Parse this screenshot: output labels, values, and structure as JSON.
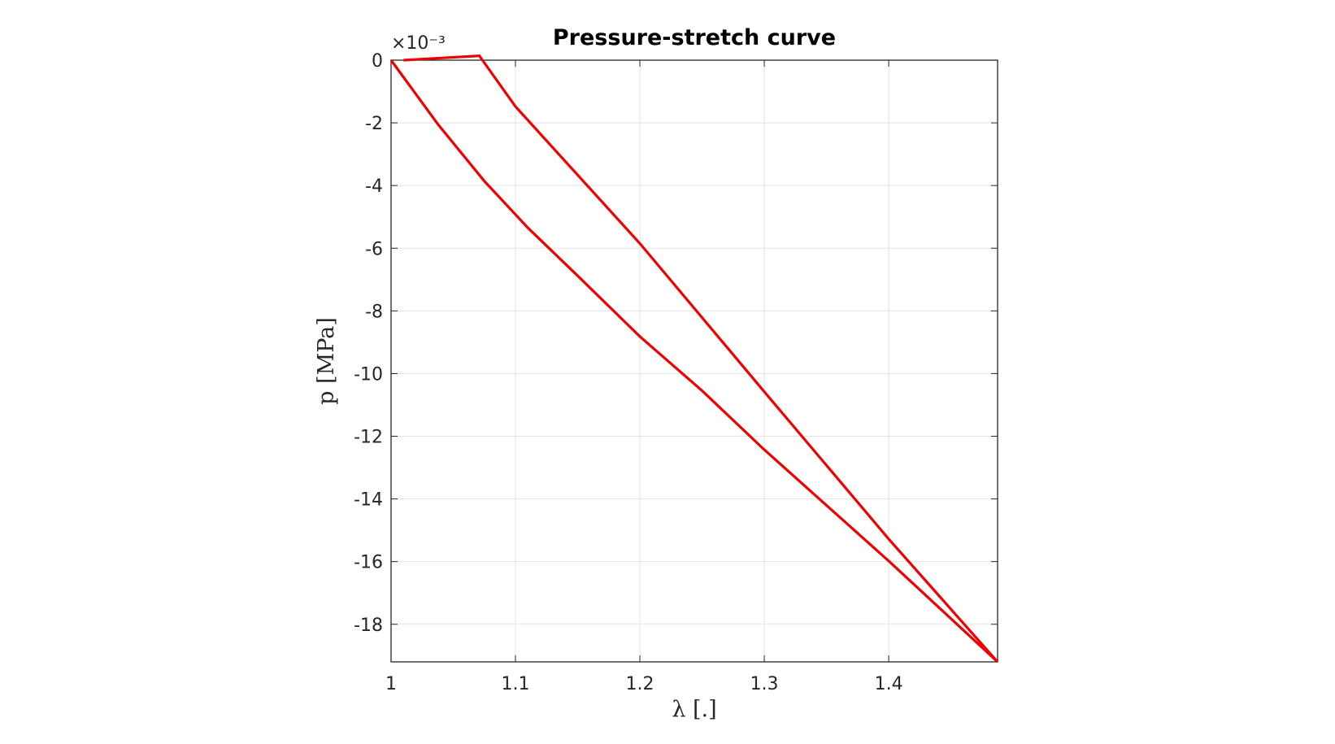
{
  "chart_data": {
    "type": "line",
    "title": "Pressure-stretch curve",
    "xlabel": "λ [.]",
    "ylabel": "p [MPa]",
    "y_exponent_label": "×10⁻³",
    "xlim": [
      1.0,
      1.4875
    ],
    "ylim": [
      -0.0192,
      0.0
    ],
    "x_ticks": [
      1.0,
      1.1,
      1.2,
      1.3,
      1.4
    ],
    "x_tick_labels": [
      "1",
      "1.1",
      "1.2",
      "1.3",
      "1.4"
    ],
    "y_ticks": [
      0,
      -0.002,
      -0.004,
      -0.006,
      -0.008,
      -0.01,
      -0.012,
      -0.014,
      -0.016,
      -0.018
    ],
    "y_tick_labels": [
      "0",
      "-2",
      "-4",
      "-6",
      "-8",
      "-10",
      "-12",
      "-14",
      "-16",
      "-18"
    ],
    "grid": true,
    "box": true,
    "color": "#ee0000",
    "grid_color": "#e3e3e3",
    "axis_color": "#262626",
    "series": [
      {
        "x": [
          1.01,
          1.071,
          1.1,
          1.2,
          1.3,
          1.4,
          1.4875,
          1.4,
          1.3,
          1.25,
          1.2,
          1.15,
          1.11,
          1.075,
          1.038,
          1.0
        ],
        "y": [
          0.0,
          0.00014,
          -0.00148,
          -0.00585,
          -0.01058,
          -0.01528,
          -0.0192,
          -0.01598,
          -0.01243,
          -0.01055,
          -0.00882,
          -0.00688,
          -0.00535,
          -0.00386,
          -0.00206,
          0.0
        ]
      }
    ]
  }
}
